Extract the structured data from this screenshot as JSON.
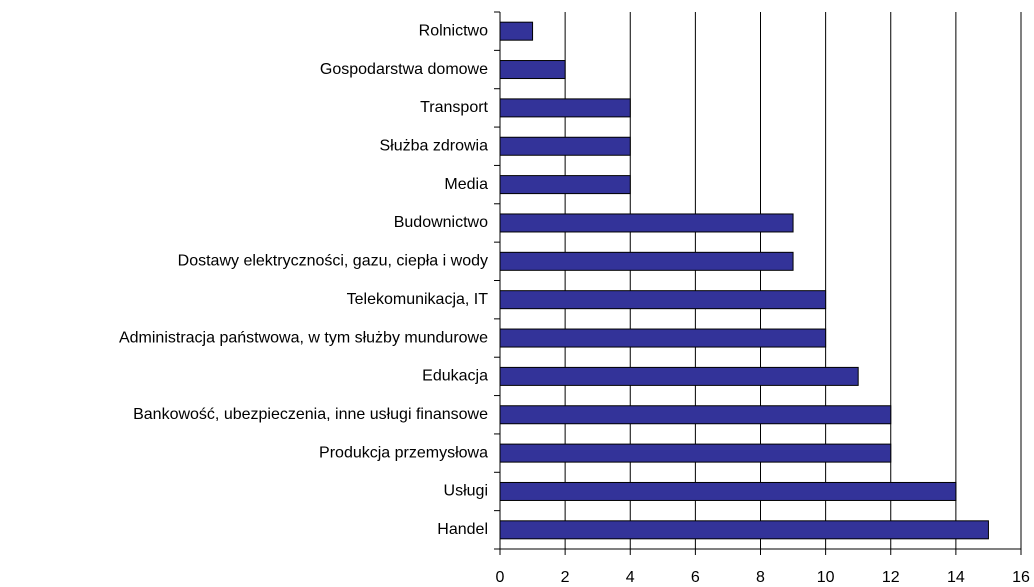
{
  "chart_data": {
    "type": "barh",
    "categories": [
      "Rolnictwo",
      "Gospodarstwa domowe",
      "Transport",
      "Służba zdrowia",
      "Media",
      "Budownictwo",
      "Dostawy elektryczności, gazu, ciepła i wody",
      "Telekomunikacja, IT",
      "Administracja państwowa, w tym służby mundurowe",
      "Edukacja",
      "Bankowość, ubezpieczenia, inne usługi finansowe",
      "Produkcja przemysłowa",
      "Usługi",
      "Handel"
    ],
    "values": [
      1,
      2,
      4,
      4,
      4,
      9,
      9,
      10,
      10,
      11,
      12,
      12,
      14,
      15
    ],
    "color": "#333399",
    "xlim": [
      0,
      16
    ],
    "xticks": [
      0,
      2,
      4,
      6,
      8,
      10,
      12,
      14,
      16
    ],
    "grid": true
  }
}
